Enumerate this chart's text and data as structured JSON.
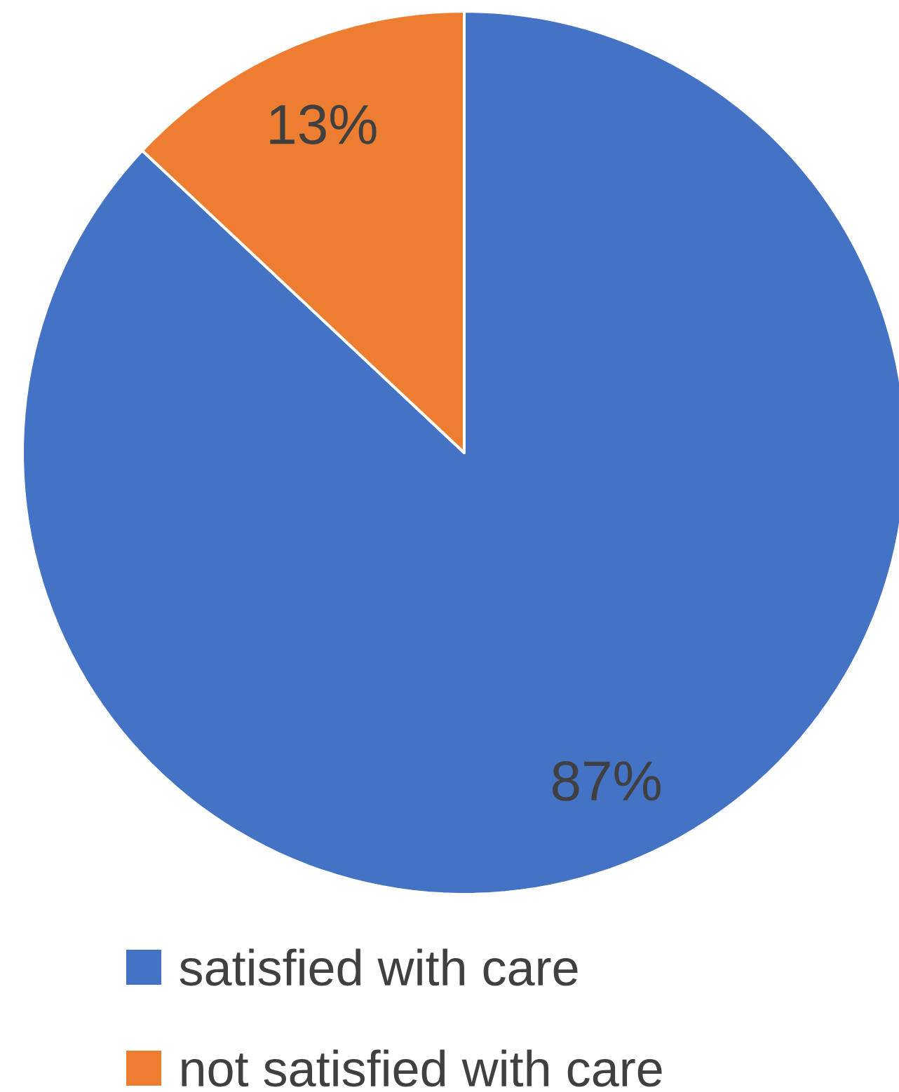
{
  "chart_data": {
    "type": "pie",
    "categories": [
      "satisfied with care",
      "not satisfied with care"
    ],
    "values": [
      87,
      13
    ],
    "colors": [
      "#4472c4",
      "#ed7d31"
    ],
    "value_labels": [
      "87%",
      "13%"
    ],
    "legend": "bottom"
  }
}
